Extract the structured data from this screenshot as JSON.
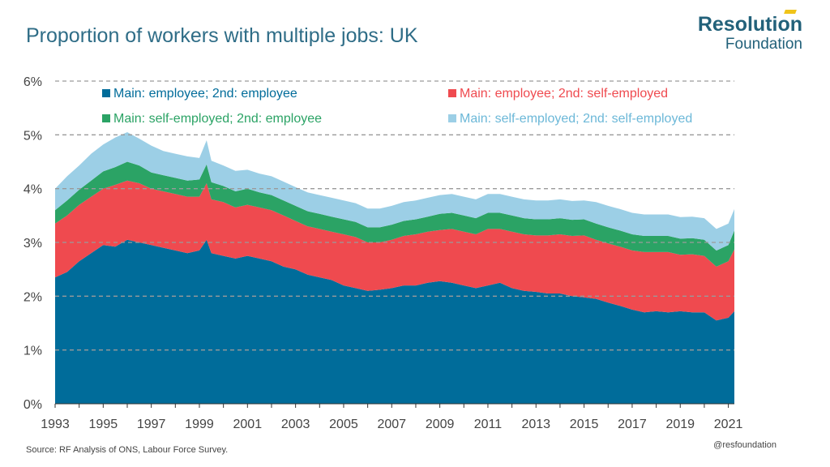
{
  "header": {
    "title": "Proportion of workers with multiple jobs: UK",
    "brand_line1": "Resolution",
    "brand_line2": "Foundation"
  },
  "footer": {
    "source": "Source: RF Analysis of ONS, Labour Force Survey.",
    "handle": "@resfoundation"
  },
  "chart_data": {
    "type": "area",
    "stacked": true,
    "title": "Proportion of workers with multiple jobs: UK",
    "xlabel": "",
    "ylabel": "",
    "xlim": [
      1993,
      2021.25
    ],
    "ylim": [
      0,
      6
    ],
    "y_ticks": [
      "0%",
      "1%",
      "2%",
      "3%",
      "4%",
      "5%",
      "6%"
    ],
    "y_tick_values": [
      0,
      1,
      2,
      3,
      4,
      5,
      6
    ],
    "x_ticks": [
      "1993",
      "1995",
      "1997",
      "1999",
      "2001",
      "2003",
      "2005",
      "2007",
      "2009",
      "2011",
      "2013",
      "2015",
      "2017",
      "2019",
      "2021"
    ],
    "x_tick_values": [
      1993,
      1995,
      1997,
      1999,
      2001,
      2003,
      2005,
      2007,
      2009,
      2011,
      2013,
      2015,
      2017,
      2019,
      2021
    ],
    "grid": "horizontal dashed",
    "legend_position": "top",
    "x": [
      1993.0,
      1993.5,
      1994.0,
      1994.5,
      1995.0,
      1995.5,
      1996.0,
      1996.5,
      1997.0,
      1997.5,
      1998.0,
      1998.5,
      1999.0,
      1999.3,
      1999.5,
      2000.0,
      2000.5,
      2001.0,
      2001.5,
      2002.0,
      2002.5,
      2003.0,
      2003.5,
      2004.0,
      2004.5,
      2005.0,
      2005.5,
      2006.0,
      2006.5,
      2007.0,
      2007.5,
      2008.0,
      2008.5,
      2009.0,
      2009.5,
      2010.0,
      2010.5,
      2011.0,
      2011.5,
      2012.0,
      2012.5,
      2013.0,
      2013.5,
      2014.0,
      2014.5,
      2015.0,
      2015.5,
      2016.0,
      2016.5,
      2017.0,
      2017.5,
      2018.0,
      2018.5,
      2019.0,
      2019.5,
      2020.0,
      2020.5,
      2021.0,
      2021.25
    ],
    "series": [
      {
        "name": "Main: employee; 2nd: employee",
        "color": "#006c9a",
        "values": [
          2.35,
          2.45,
          2.65,
          2.8,
          2.95,
          2.92,
          3.05,
          3.0,
          2.95,
          2.9,
          2.85,
          2.8,
          2.85,
          3.05,
          2.8,
          2.75,
          2.7,
          2.75,
          2.7,
          2.65,
          2.55,
          2.5,
          2.4,
          2.35,
          2.3,
          2.2,
          2.15,
          2.1,
          2.12,
          2.15,
          2.2,
          2.2,
          2.25,
          2.28,
          2.25,
          2.2,
          2.15,
          2.2,
          2.25,
          2.15,
          2.1,
          2.08,
          2.05,
          2.05,
          2.0,
          1.98,
          1.95,
          1.88,
          1.82,
          1.75,
          1.7,
          1.72,
          1.7,
          1.72,
          1.7,
          1.7,
          1.55,
          1.6,
          1.72
        ]
      },
      {
        "name": "Main: employee; 2nd: self-employed",
        "color": "#ef4a4f",
        "values": [
          1.0,
          1.05,
          1.05,
          1.05,
          1.05,
          1.15,
          1.1,
          1.1,
          1.05,
          1.05,
          1.05,
          1.05,
          1.0,
          1.05,
          1.0,
          1.0,
          0.95,
          0.95,
          0.95,
          0.95,
          0.95,
          0.9,
          0.9,
          0.9,
          0.9,
          0.95,
          0.95,
          0.9,
          0.88,
          0.9,
          0.92,
          0.95,
          0.95,
          0.95,
          1.0,
          1.0,
          1.0,
          1.05,
          1.0,
          1.05,
          1.05,
          1.05,
          1.08,
          1.1,
          1.12,
          1.15,
          1.1,
          1.1,
          1.1,
          1.1,
          1.12,
          1.1,
          1.12,
          1.05,
          1.08,
          1.05,
          1.0,
          1.05,
          1.15
        ]
      },
      {
        "name": "Main: self-employed; 2nd: employee",
        "color": "#2ba365",
        "values": [
          0.25,
          0.28,
          0.28,
          0.3,
          0.32,
          0.33,
          0.35,
          0.33,
          0.3,
          0.3,
          0.3,
          0.3,
          0.32,
          0.35,
          0.32,
          0.3,
          0.3,
          0.3,
          0.28,
          0.28,
          0.28,
          0.28,
          0.28,
          0.28,
          0.28,
          0.28,
          0.28,
          0.28,
          0.28,
          0.28,
          0.28,
          0.28,
          0.28,
          0.3,
          0.3,
          0.3,
          0.3,
          0.3,
          0.3,
          0.3,
          0.3,
          0.3,
          0.3,
          0.3,
          0.3,
          0.3,
          0.3,
          0.3,
          0.3,
          0.3,
          0.3,
          0.3,
          0.3,
          0.3,
          0.3,
          0.3,
          0.3,
          0.3,
          0.35
        ]
      },
      {
        "name": "Main: self-employed; 2nd: self-employed",
        "color": "#9ccfe6",
        "values": [
          0.4,
          0.45,
          0.45,
          0.5,
          0.5,
          0.55,
          0.55,
          0.5,
          0.5,
          0.45,
          0.45,
          0.45,
          0.4,
          0.45,
          0.4,
          0.38,
          0.38,
          0.35,
          0.35,
          0.35,
          0.35,
          0.35,
          0.35,
          0.35,
          0.35,
          0.35,
          0.35,
          0.35,
          0.35,
          0.35,
          0.35,
          0.35,
          0.35,
          0.35,
          0.35,
          0.35,
          0.35,
          0.35,
          0.35,
          0.35,
          0.35,
          0.35,
          0.35,
          0.35,
          0.35,
          0.35,
          0.4,
          0.4,
          0.4,
          0.4,
          0.4,
          0.4,
          0.4,
          0.4,
          0.4,
          0.4,
          0.4,
          0.4,
          0.4
        ]
      }
    ]
  }
}
